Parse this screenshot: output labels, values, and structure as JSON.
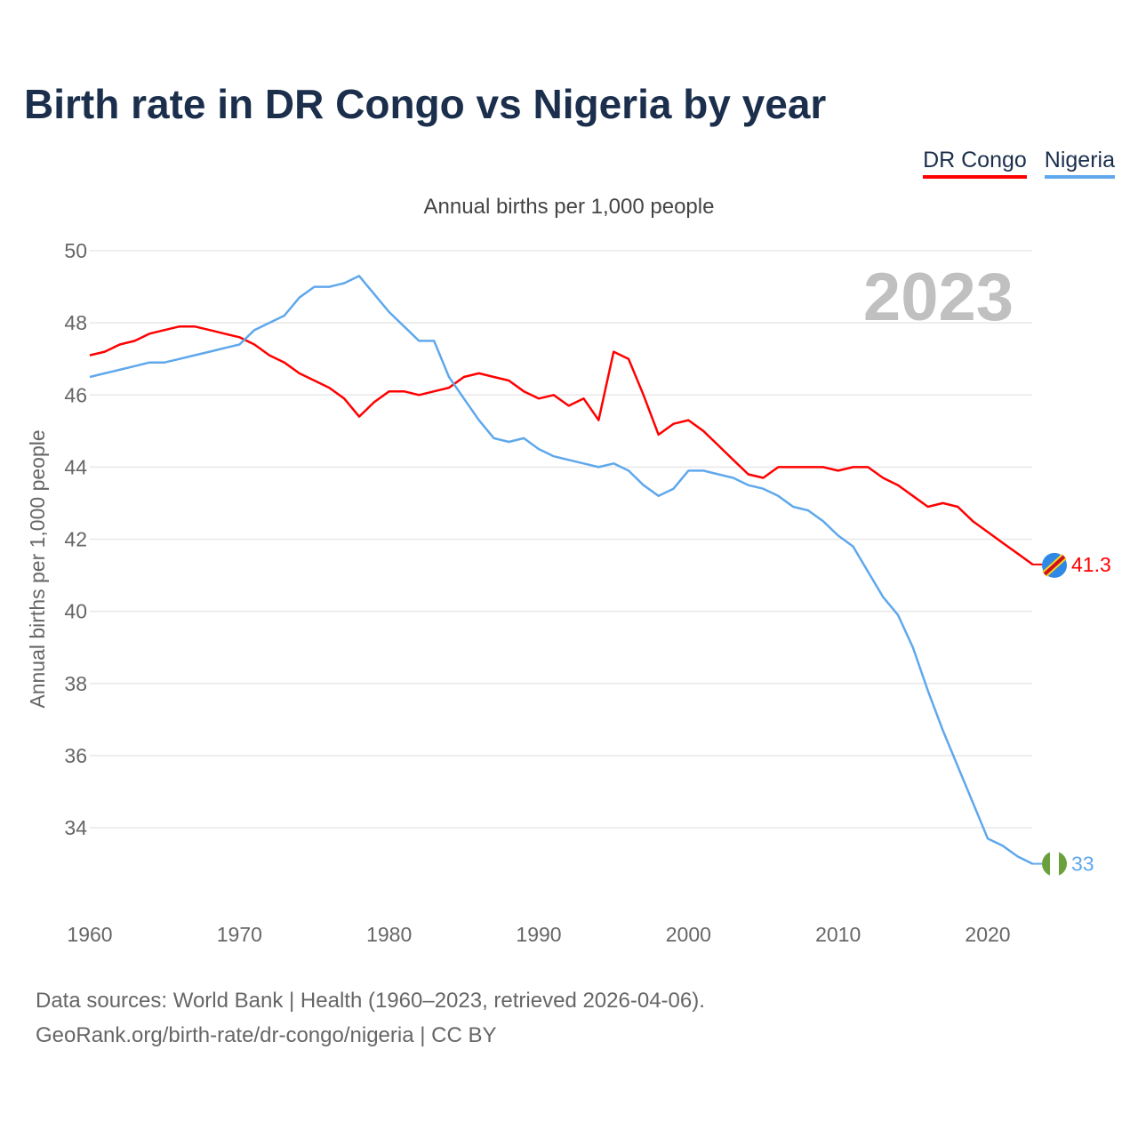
{
  "title": "Birth rate in DR Congo vs Nigeria by year",
  "legend": [
    "DR Congo",
    "Nigeria"
  ],
  "source_line1": "Data sources: World Bank | Health (1960–2023, retrieved 2026-04-06).",
  "source_line2": "GeoRank.org/birth-rate/dr-congo/nigeria | CC BY",
  "chart_data": {
    "type": "line",
    "title": "Birth rate in DR Congo vs Nigeria by year",
    "subtitle": "Annual births per 1,000 people",
    "ylabel": "Annual births per 1,000 people",
    "xlabel": "",
    "year_label": "2023",
    "xlim": [
      1960,
      2023
    ],
    "ylim": [
      32,
      50
    ],
    "yticks": [
      34,
      36,
      38,
      40,
      42,
      44,
      46,
      48,
      50
    ],
    "xticks": [
      1960,
      1970,
      1980,
      1990,
      2000,
      2010,
      2020
    ],
    "grid": true,
    "legend_position": "top-right",
    "x_start": 1960,
    "series": [
      {
        "name": "DR Congo",
        "color": "#ff0000",
        "end_label": "41.3",
        "values": [
          47.1,
          47.2,
          47.4,
          47.5,
          47.7,
          47.8,
          47.9,
          47.9,
          47.8,
          47.7,
          47.6,
          47.4,
          47.1,
          46.9,
          46.6,
          46.4,
          46.2,
          45.9,
          45.4,
          45.8,
          46.1,
          46.1,
          46.0,
          46.1,
          46.2,
          46.5,
          46.6,
          46.5,
          46.4,
          46.1,
          45.9,
          46.0,
          45.7,
          45.9,
          45.3,
          47.2,
          47.0,
          46.0,
          44.9,
          45.2,
          45.3,
          45.0,
          44.6,
          44.2,
          43.8,
          43.7,
          44.0,
          44.0,
          44.0,
          44.0,
          43.9,
          44.0,
          44.0,
          43.7,
          43.5,
          43.2,
          42.9,
          43.0,
          42.9,
          42.5,
          42.2,
          41.9,
          41.6,
          41.3
        ]
      },
      {
        "name": "Nigeria",
        "color": "#5fa8ec",
        "end_label": "33",
        "values": [
          46.5,
          46.6,
          46.7,
          46.8,
          46.9,
          46.9,
          47.0,
          47.1,
          47.2,
          47.3,
          47.4,
          47.8,
          48.0,
          48.2,
          48.7,
          49.0,
          49.0,
          49.1,
          49.3,
          48.8,
          48.3,
          47.9,
          47.5,
          47.5,
          46.5,
          45.9,
          45.3,
          44.8,
          44.7,
          44.8,
          44.5,
          44.3,
          44.2,
          44.1,
          44.0,
          44.1,
          43.9,
          43.5,
          43.2,
          43.4,
          43.9,
          43.9,
          43.8,
          43.7,
          43.5,
          43.4,
          43.2,
          42.9,
          42.8,
          42.5,
          42.1,
          41.8,
          41.1,
          40.4,
          39.9,
          39.0,
          37.8,
          36.7,
          35.7,
          34.7,
          33.7,
          33.5,
          33.2,
          33.0
        ]
      }
    ]
  }
}
